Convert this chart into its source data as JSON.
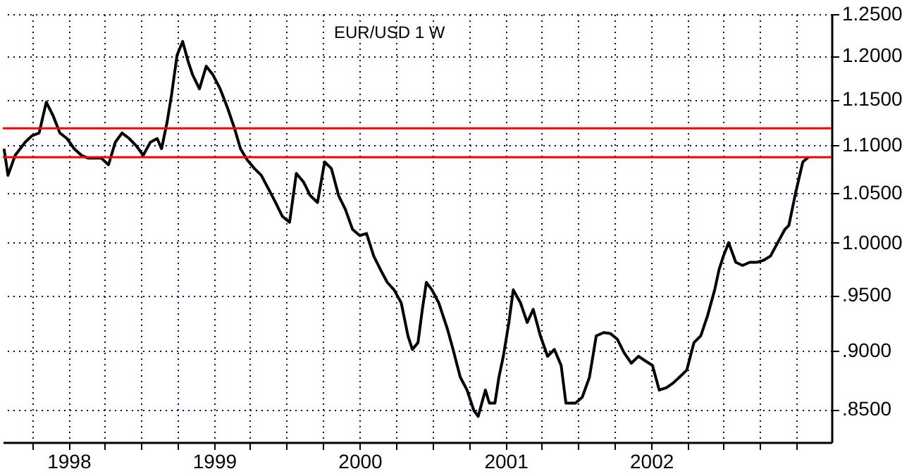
{
  "chart_data": {
    "type": "line",
    "title": "EUR/USD 1 W",
    "x": [
      "1997-07-23",
      "1997-08-02",
      "1997-08-20",
      "1997-09-14",
      "1997-10-01",
      "1997-10-19",
      "1997-11-06",
      "1997-11-23",
      "1997-12-10",
      "1997-12-28",
      "1998-01-15",
      "1998-02-02",
      "1998-02-19",
      "1998-03-24",
      "1998-04-11",
      "1998-04-28",
      "1998-05-15",
      "1998-06-02",
      "1998-06-20",
      "1998-07-07",
      "1998-07-25",
      "1998-08-11",
      "1998-08-22",
      "1998-09-05",
      "1998-09-16",
      "1998-09-30",
      "1998-10-14",
      "1998-10-28",
      "1998-11-08",
      "1998-11-25",
      "1998-12-12",
      "1998-12-29",
      "1999-01-16",
      "1999-02-04",
      "1999-02-21",
      "1999-03-08",
      "1999-03-25",
      "1999-04-12",
      "1999-04-29",
      "1999-05-17",
      "1999-06-04",
      "1999-06-21",
      "1999-07-09",
      "1999-07-26",
      "1999-08-13",
      "1999-08-30",
      "1999-09-17",
      "1999-10-05",
      "1999-10-22",
      "1999-11-09",
      "1999-11-26",
      "1999-12-14",
      "2000-01-01",
      "2000-01-18",
      "2000-02-05",
      "2000-02-22",
      "2000-03-10",
      "2000-03-27",
      "2000-04-14",
      "2000-05-01",
      "2000-05-12",
      "2000-05-26",
      "2000-06-06",
      "2000-06-16",
      "2000-06-30",
      "2000-07-17",
      "2000-08-08",
      "2000-08-22",
      "2000-09-09",
      "2000-09-26",
      "2000-10-13",
      "2000-10-24",
      "2000-11-11",
      "2000-11-21",
      "2000-12-05",
      "2000-12-15",
      "2000-12-26",
      "2001-01-09",
      "2001-01-20",
      "2001-02-07",
      "2001-02-24",
      "2001-03-11",
      "2001-03-29",
      "2001-04-16",
      "2001-05-03",
      "2001-05-20",
      "2001-06-01",
      "2001-06-25",
      "2001-07-12",
      "2001-07-30",
      "2001-08-16",
      "2001-09-04",
      "2001-09-21",
      "2001-10-08",
      "2001-10-25",
      "2001-11-12",
      "2001-11-30",
      "2001-12-17",
      "2002-01-04",
      "2002-01-21",
      "2002-02-08",
      "2002-02-25",
      "2002-03-13",
      "2002-03-31",
      "2002-04-18",
      "2002-05-05",
      "2002-05-22",
      "2002-06-09",
      "2002-06-20",
      "2002-07-01",
      "2002-07-14",
      "2002-08-01",
      "2002-08-18",
      "2002-09-05",
      "2002-09-23",
      "2002-10-10",
      "2002-10-27",
      "2002-11-14",
      "2002-12-02",
      "2002-12-12",
      "2002-12-29",
      "2003-01-16",
      "2003-01-30"
    ],
    "series": [
      {
        "color": "#000000",
        "values": [
          1.096,
          1.068,
          1.089,
          1.103,
          1.11,
          1.113,
          1.147,
          1.132,
          1.113,
          1.107,
          1.096,
          1.089,
          1.086,
          1.086,
          1.079,
          1.103,
          1.113,
          1.107,
          1.099,
          1.089,
          1.103,
          1.107,
          1.096,
          1.125,
          1.155,
          1.201,
          1.217,
          1.193,
          1.178,
          1.162,
          1.188,
          1.178,
          1.162,
          1.14,
          1.118,
          1.096,
          1.084,
          1.075,
          1.068,
          1.054,
          1.04,
          1.026,
          1.02,
          1.07,
          1.061,
          1.047,
          1.04,
          1.082,
          1.075,
          1.047,
          1.033,
          1.013,
          1.007,
          1.009,
          0.987,
          0.974,
          0.962,
          0.955,
          0.943,
          0.913,
          0.901,
          0.907,
          0.937,
          0.962,
          0.955,
          0.943,
          0.919,
          0.901,
          0.877,
          0.866,
          0.849,
          0.844,
          0.866,
          0.855,
          0.855,
          0.877,
          0.895,
          0.925,
          0.955,
          0.943,
          0.925,
          0.937,
          0.913,
          0.895,
          0.901,
          0.887,
          0.855,
          0.855,
          0.86,
          0.877,
          0.913,
          0.916,
          0.915,
          0.91,
          0.898,
          0.889,
          0.895,
          0.891,
          0.887,
          0.866,
          0.868,
          0.872,
          0.877,
          0.883,
          0.907,
          0.913,
          0.931,
          0.955,
          0.974,
          0.987,
          1.0,
          0.981,
          0.978,
          0.981,
          0.981,
          0.983,
          0.987,
          1.0,
          1.013,
          1.017,
          1.05,
          1.082,
          1.087
        ]
      }
    ],
    "xlim": [
      "1997-07-20",
      "2003-03-29"
    ],
    "xticks": [
      {
        "value": "1997-10-01",
        "label": null
      },
      {
        "value": "1998-01-01",
        "label": "1998"
      },
      {
        "value": "1998-04-01",
        "label": null
      },
      {
        "value": "1998-07-01",
        "label": null
      },
      {
        "value": "1998-10-01",
        "label": null
      },
      {
        "value": "1999-01-01",
        "label": "1999"
      },
      {
        "value": "1999-04-01",
        "label": null
      },
      {
        "value": "1999-07-01",
        "label": null
      },
      {
        "value": "1999-10-01",
        "label": null
      },
      {
        "value": "2000-01-01",
        "label": "2000"
      },
      {
        "value": "2000-04-01",
        "label": null
      },
      {
        "value": "2000-07-01",
        "label": null
      },
      {
        "value": "2000-10-01",
        "label": null
      },
      {
        "value": "2001-01-01",
        "label": "2001"
      },
      {
        "value": "2001-04-01",
        "label": null
      },
      {
        "value": "2001-07-01",
        "label": null
      },
      {
        "value": "2001-10-01",
        "label": null
      },
      {
        "value": "2002-01-01",
        "label": "2002"
      },
      {
        "value": "2002-04-01",
        "label": null
      },
      {
        "value": "2002-07-01",
        "label": null
      },
      {
        "value": "2002-10-01",
        "label": null
      },
      {
        "value": "2003-01-01",
        "label": null
      }
    ],
    "ylim": [
      0.823,
      1.25
    ],
    "yticks": [
      {
        "value": 0.85,
        "label": ".8500"
      },
      {
        "value": 0.9,
        "label": ".9000"
      },
      {
        "value": 0.95,
        "label": ".9500"
      },
      {
        "value": 1.0,
        "label": "1.0000"
      },
      {
        "value": 1.05,
        "label": "1.0500"
      },
      {
        "value": 1.1,
        "label": "1.1000"
      },
      {
        "value": 1.15,
        "label": "1.1500"
      },
      {
        "value": 1.2,
        "label": "1.2000"
      },
      {
        "value": 1.25,
        "label": "1.2500"
      }
    ],
    "log": true,
    "grid": true,
    "marker": "none",
    "line_style": "solid",
    "ref_lines": [
      {
        "axis": "y",
        "value": 1.118,
        "color": "#ff0000"
      },
      {
        "axis": "y",
        "value": 1.087,
        "color": "#ff0000"
      }
    ]
  }
}
